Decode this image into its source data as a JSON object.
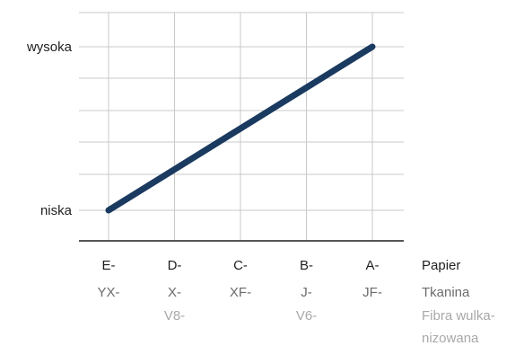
{
  "chart_data": {
    "type": "line",
    "y_labels": {
      "low": "niska",
      "high": "wysoka"
    },
    "categories": [
      [
        "E-",
        "YX-",
        ""
      ],
      [
        "D-",
        "X-",
        "V8-"
      ],
      [
        "C-",
        "XF-",
        ""
      ],
      [
        "B-",
        "J-",
        "V6-"
      ],
      [
        "A-",
        "JF-",
        ""
      ]
    ],
    "legend": [
      {
        "text": "Papier",
        "color": "#1f1f1f"
      },
      {
        "text": "Tkanina",
        "color": "#6b6b6b"
      },
      {
        "text": [
          "Fibra wulka-",
          "nizowana"
        ],
        "color": "#a8a8a8"
      }
    ],
    "row_colors": [
      "#1f1f1f",
      "#6b6b6b",
      "#a8a8a8"
    ],
    "series": [
      {
        "values": [
          0,
          0.25,
          0.5,
          0.75,
          1
        ],
        "color": "#1a3a60"
      }
    ],
    "ylim": [
      0,
      1
    ],
    "grid": true
  }
}
